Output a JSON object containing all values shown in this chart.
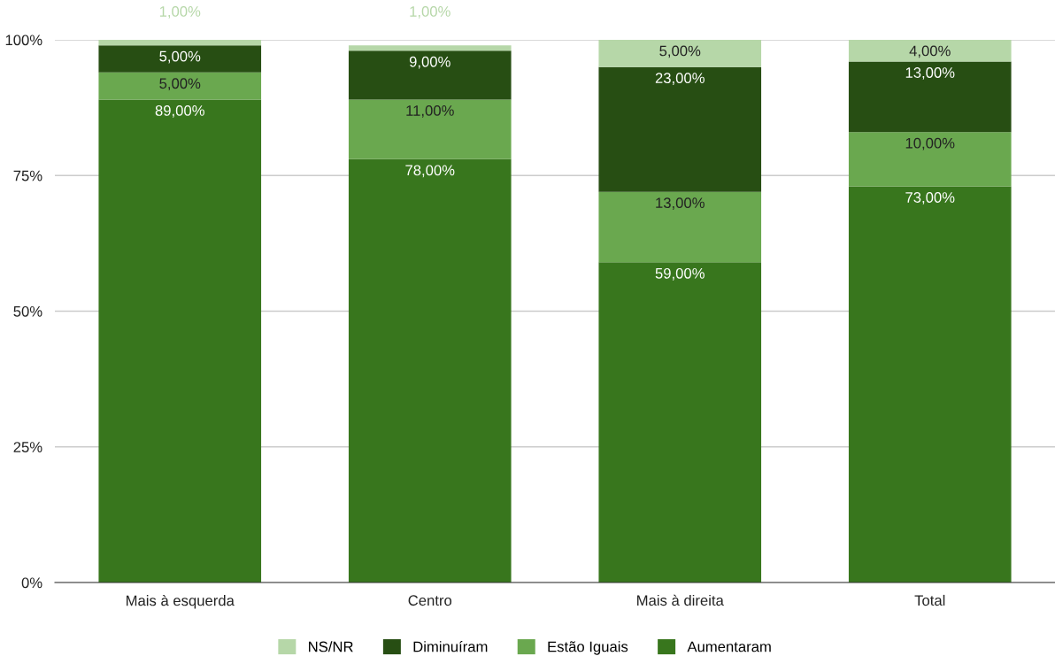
{
  "chart_data": {
    "type": "bar",
    "stacked": true,
    "categories": [
      "Mais à esquerda",
      "Centro",
      "Mais à direita",
      "Total"
    ],
    "series": [
      {
        "name": "Aumentaram",
        "color": "#38761d",
        "values": [
          89,
          78,
          59,
          73
        ],
        "value_labels": [
          "89,00%",
          "78,00%",
          "59,00%",
          "73,00%"
        ]
      },
      {
        "name": "Estão Iguais",
        "color": "#6aa84f",
        "values": [
          5,
          11,
          13,
          10
        ],
        "value_labels": [
          "5,00%",
          "11,00%",
          "13,00%",
          "10,00%"
        ]
      },
      {
        "name": "Diminuíram",
        "color": "#274e13",
        "values": [
          5,
          9,
          23,
          13
        ],
        "value_labels": [
          "5,00%",
          "9,00%",
          "23,00%",
          "13,00%"
        ]
      },
      {
        "name": "NS/NR",
        "color": "#b6d7a8",
        "values": [
          1,
          1,
          5,
          4
        ],
        "value_labels": [
          "1,00%",
          "1,00%",
          "5,00%",
          "4,00%"
        ]
      }
    ],
    "ylim": [
      0,
      100
    ],
    "yticks": [
      {
        "value": 0,
        "label": "0%"
      },
      {
        "value": 25,
        "label": "25%"
      },
      {
        "value": 50,
        "label": "50%"
      },
      {
        "value": 75,
        "label": "75%"
      },
      {
        "value": 100,
        "label": "100%"
      }
    ],
    "grid": "y",
    "legend": "bottom"
  }
}
